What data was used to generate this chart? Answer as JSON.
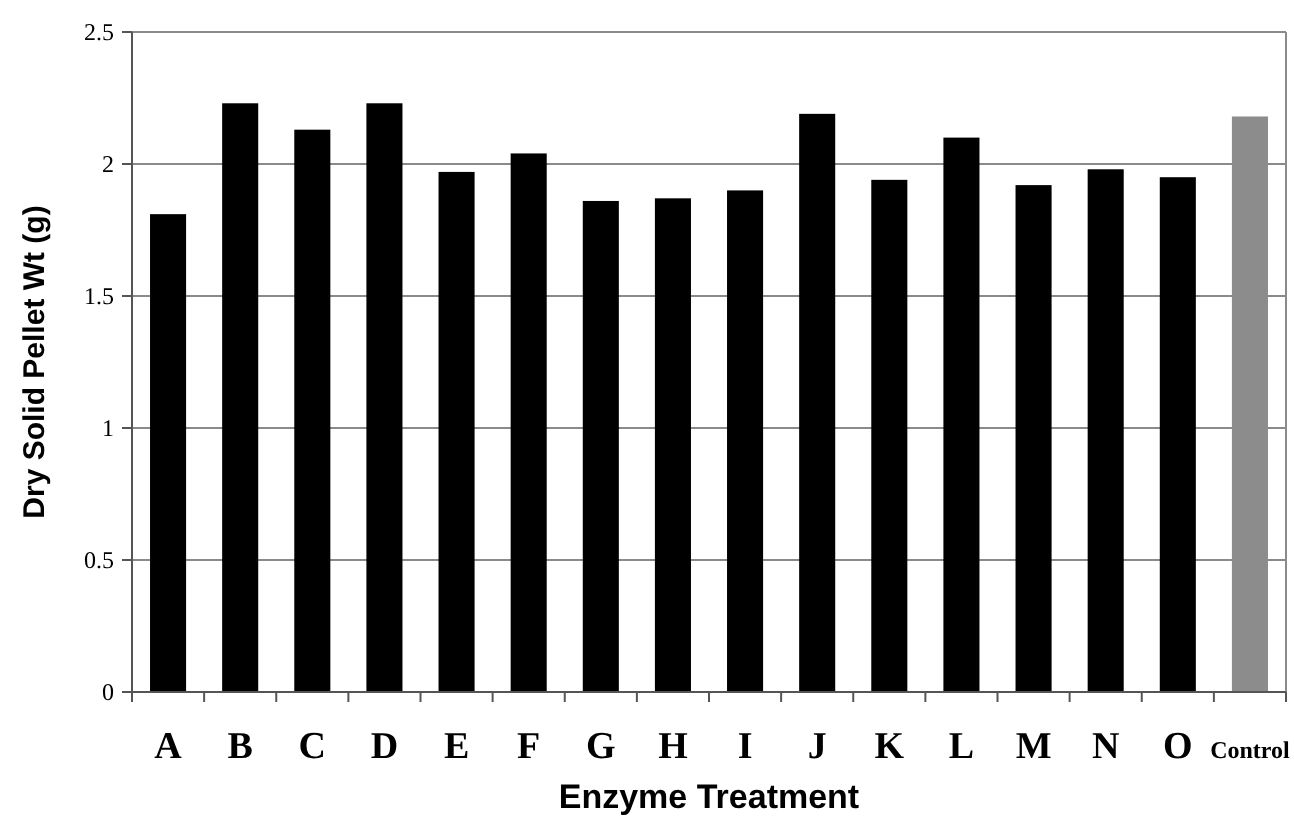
{
  "chart_data": {
    "type": "bar",
    "xlabel": "Enzyme Treatment",
    "ylabel": "Dry Solid Pellet Wt (g)",
    "categories": [
      "A",
      "B",
      "C",
      "D",
      "E",
      "F",
      "G",
      "H",
      "I",
      "J",
      "K",
      "L",
      "M",
      "N",
      "O",
      "Control"
    ],
    "values": [
      1.81,
      2.23,
      2.13,
      2.23,
      1.97,
      2.04,
      1.86,
      1.87,
      1.9,
      2.19,
      1.94,
      2.1,
      1.92,
      1.98,
      1.95,
      2.18
    ],
    "colors": [
      "#000000",
      "#000000",
      "#000000",
      "#000000",
      "#000000",
      "#000000",
      "#000000",
      "#000000",
      "#000000",
      "#000000",
      "#000000",
      "#000000",
      "#000000",
      "#000000",
      "#000000",
      "#8c8c8c"
    ],
    "ylim": [
      0,
      2.5
    ],
    "yticks": [
      0,
      0.5,
      1,
      1.5,
      2,
      2.5
    ],
    "grid": "y"
  }
}
